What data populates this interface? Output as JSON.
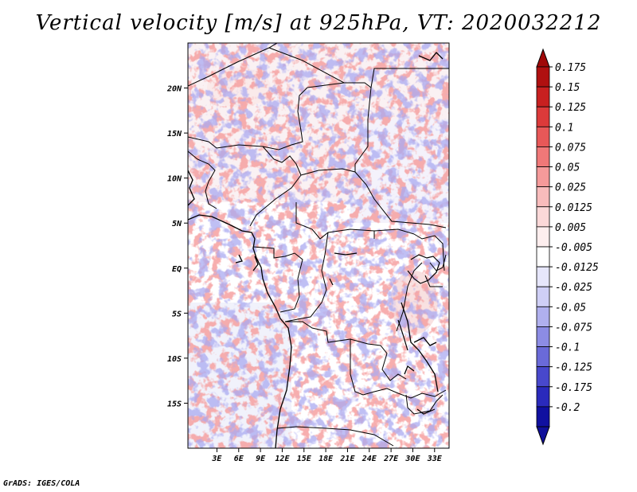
{
  "title": "Vertical velocity [m/s] at 925hPa, VT: 2020032212",
  "credit": "GrADS: IGES/COLA",
  "map": {
    "lon_range": [
      -1,
      35
    ],
    "lat_range": [
      -20,
      25
    ],
    "lat_ticks": [
      "20N",
      "15N",
      "10N",
      "5N",
      "EQ",
      "5S",
      "10S",
      "15S"
    ],
    "lat_values": [
      20,
      15,
      10,
      5,
      0,
      -5,
      -10,
      -15
    ],
    "lon_ticks": [
      "3E",
      "6E",
      "9E",
      "12E",
      "15E",
      "18E",
      "21E",
      "24E",
      "27E",
      "30E",
      "33E"
    ],
    "lon_values": [
      3,
      6,
      9,
      12,
      15,
      18,
      21,
      24,
      27,
      30,
      33
    ]
  },
  "colorbar": {
    "labels": [
      "0.175",
      "0.15",
      "0.125",
      "0.1",
      "0.075",
      "0.05",
      "0.025",
      "0.0125",
      "0.005",
      "-0.005",
      "-0.0125",
      "-0.025",
      "-0.05",
      "-0.075",
      "-0.1",
      "-0.125",
      "-0.175",
      "-0.2"
    ],
    "colors": [
      "#b01010",
      "#c82020",
      "#dc3a3a",
      "#e85858",
      "#f07878",
      "#f59a9a",
      "#f8bcbc",
      "#fbd8d8",
      "#fdeeee",
      "#ffffff",
      "#e6e6fb",
      "#cfcff6",
      "#b0b0ee",
      "#8c8ce4",
      "#6a6ad8",
      "#4848cc",
      "#2a2abc",
      "#1010a0"
    ],
    "top_arrow_color": "#a00808",
    "bottom_arrow_color": "#10109a"
  }
}
